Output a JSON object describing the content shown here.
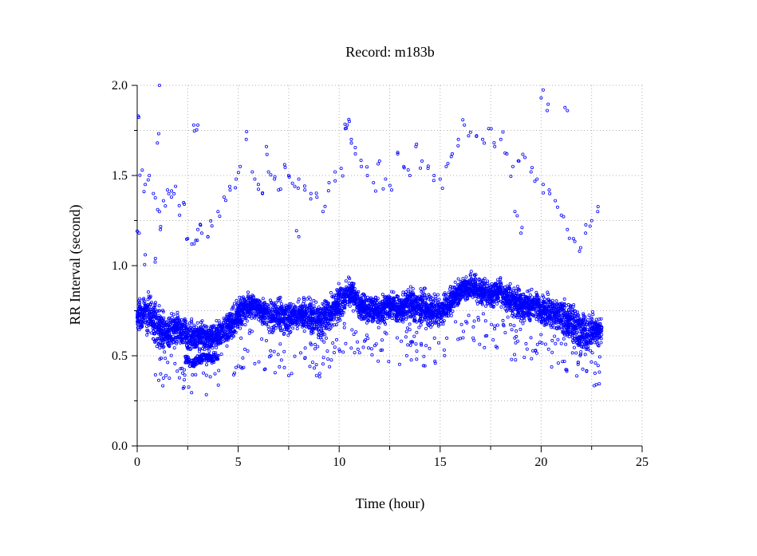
{
  "chart_data": {
    "type": "scatter",
    "title": "Record:  m183b",
    "xlabel": "Time (hour)",
    "ylabel": "RR Interval (second)",
    "xlim": [
      0,
      25
    ],
    "ylim": [
      0.0,
      2.0
    ],
    "x_ticks": [
      0,
      5,
      10,
      15,
      20,
      25
    ],
    "x_tick_labels": [
      "0",
      "5",
      "10",
      "15",
      "20",
      "25"
    ],
    "y_ticks": [
      0.0,
      0.5,
      1.0,
      1.5,
      2.0
    ],
    "y_tick_labels": [
      "0.0",
      "0.5",
      "1.0",
      "1.5",
      "2.0"
    ],
    "grid": true,
    "marker_color": "#0000ff",
    "marker": "open-circle",
    "main_band": {
      "x": [
        0.0,
        0.5,
        1.0,
        1.5,
        2.0,
        2.5,
        3.0,
        3.5,
        4.0,
        4.5,
        5.0,
        5.5,
        6.0,
        6.5,
        7.0,
        7.5,
        8.0,
        8.5,
        9.0,
        9.5,
        10.0,
        10.5,
        11.0,
        11.5,
        12.0,
        12.5,
        13.0,
        13.5,
        14.0,
        14.5,
        15.0,
        15.5,
        16.0,
        16.5,
        17.0,
        17.5,
        18.0,
        18.5,
        19.0,
        19.5,
        20.0,
        20.5,
        21.0,
        21.5,
        22.0,
        22.5,
        23.0
      ],
      "y": [
        0.72,
        0.74,
        0.66,
        0.62,
        0.66,
        0.62,
        0.6,
        0.6,
        0.62,
        0.66,
        0.72,
        0.78,
        0.76,
        0.72,
        0.72,
        0.7,
        0.74,
        0.72,
        0.7,
        0.74,
        0.78,
        0.86,
        0.78,
        0.76,
        0.74,
        0.78,
        0.76,
        0.8,
        0.76,
        0.76,
        0.74,
        0.8,
        0.86,
        0.88,
        0.86,
        0.84,
        0.86,
        0.8,
        0.78,
        0.78,
        0.76,
        0.74,
        0.72,
        0.68,
        0.62,
        0.64,
        0.64
      ],
      "spread": [
        0.1,
        0.14,
        0.16,
        0.12,
        0.12,
        0.12,
        0.1,
        0.1,
        0.1,
        0.12,
        0.12,
        0.1,
        0.1,
        0.12,
        0.12,
        0.12,
        0.1,
        0.12,
        0.14,
        0.12,
        0.14,
        0.1,
        0.1,
        0.1,
        0.1,
        0.1,
        0.1,
        0.12,
        0.12,
        0.14,
        0.1,
        0.1,
        0.1,
        0.1,
        0.1,
        0.1,
        0.1,
        0.12,
        0.12,
        0.12,
        0.12,
        0.12,
        0.14,
        0.14,
        0.16,
        0.14,
        0.1
      ]
    },
    "lower_cluster": {
      "x": [
        2.5,
        2.7,
        2.9,
        3.1,
        3.3,
        3.5,
        3.7,
        3.9
      ],
      "y": [
        0.48,
        0.46,
        0.47,
        0.48,
        0.49,
        0.49,
        0.48,
        0.5
      ]
    },
    "outliers": {
      "x": [
        0.05,
        0.1,
        0.25,
        0.4,
        0.6,
        0.8,
        1.0,
        1.1,
        1.15,
        1.3,
        1.5,
        1.7,
        1.9,
        2.1,
        2.3,
        2.5,
        2.7,
        2.9,
        3.0,
        3.2,
        3.5,
        3.7,
        4.0,
        4.3,
        4.6,
        4.9,
        5.1,
        5.4,
        5.7,
        6.0,
        6.2,
        6.5,
        6.8,
        7.0,
        7.3,
        7.5,
        7.8,
        8.0,
        8.3,
        8.6,
        8.9,
        9.2,
        9.5,
        9.8,
        10.1,
        10.4,
        10.6,
        10.8,
        11.1,
        11.4,
        11.7,
        12.0,
        12.3,
        12.6,
        12.9,
        13.2,
        13.5,
        13.8,
        14.1,
        14.4,
        14.7,
        15.0,
        15.3,
        15.6,
        15.9,
        16.2,
        16.5,
        16.8,
        17.1,
        17.4,
        17.7,
        18.0,
        18.3,
        18.6,
        18.9,
        19.2,
        19.5,
        19.8,
        20.1,
        20.4,
        20.7,
        21.0,
        21.3,
        21.6,
        21.9,
        22.2,
        22.5,
        22.8,
        1.1,
        2.8,
        3.0,
        10.5,
        10.3,
        20.0,
        20.3,
        21.3,
        19.0,
        0.4,
        0.9,
        8.0,
        6.4,
        18.7
      ],
      "y": [
        1.83,
        1.18,
        1.53,
        1.45,
        1.5,
        1.4,
        1.68,
        1.3,
        1.2,
        1.36,
        1.42,
        1.38,
        1.44,
        1.28,
        1.35,
        1.15,
        1.12,
        1.14,
        1.2,
        1.18,
        1.16,
        1.22,
        1.3,
        1.38,
        1.42,
        1.48,
        1.55,
        1.7,
        1.52,
        1.45,
        1.4,
        1.52,
        1.48,
        1.42,
        1.56,
        1.5,
        1.44,
        1.48,
        1.42,
        1.4,
        1.38,
        1.3,
        1.46,
        1.52,
        1.54,
        1.78,
        1.7,
        1.62,
        1.55,
        1.5,
        1.46,
        1.58,
        1.48,
        1.42,
        1.62,
        1.55,
        1.5,
        1.66,
        1.58,
        1.54,
        1.5,
        1.48,
        1.55,
        1.62,
        1.7,
        1.78,
        1.74,
        1.72,
        1.7,
        1.76,
        1.66,
        1.7,
        1.62,
        1.55,
        1.58,
        1.6,
        1.52,
        1.48,
        1.45,
        1.42,
        1.36,
        1.28,
        1.2,
        1.15,
        1.08,
        1.18,
        1.25,
        1.3,
        2.0,
        1.78,
        1.78,
        1.8,
        1.76,
        1.93,
        1.86,
        1.86,
        1.18,
        1.06,
        1.04,
        1.16,
        1.66,
        1.3
      ],
      "seed": 7
    }
  }
}
